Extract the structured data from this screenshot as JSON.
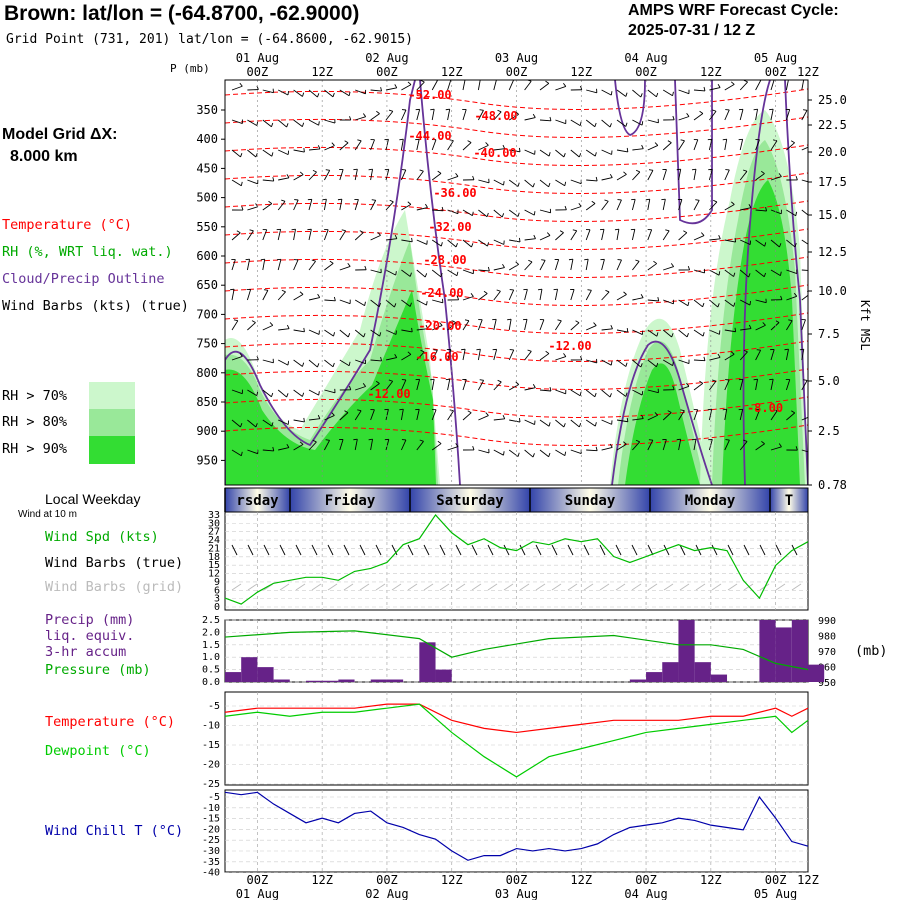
{
  "header": {
    "title": "Brown:  lat/lon = (-64.8700, -62.9000)",
    "subtitle": "Grid Point (731, 201) lat/lon = (-64.8600, -62.9015)",
    "cycle_line1": "AMPS WRF Forecast Cycle:",
    "cycle_line2": "2025-07-31 / 12  Z",
    "grid_label": "Model Grid ΔX:",
    "grid_value": "8.000 km"
  },
  "legend": {
    "temperature": "Temperature (°C)",
    "rh": "RH (%, WRT liq. wat.)",
    "cloud": "Cloud/Precip Outline",
    "wind": "Wind Barbs (kts) (true)",
    "rh70": "RH > 70%",
    "rh80": "RH > 80%",
    "rh90": "RH > 90%",
    "local_weekday": "Local Weekday",
    "wind_at": "Wind at 10 m",
    "wind_spd": "Wind Spd (kts)",
    "wind_true": "Wind Barbs (true)",
    "wind_grid": "Wind Barbs (grid)",
    "precip1": "Precip (mm)",
    "precip2": "liq. equiv.",
    "precip3": "3-hr accum",
    "pressure": "Pressure (mb)",
    "pressure_unit": "(mb)",
    "temp2": "Temperature (°C)",
    "dewpoint": "Dewpoint (°C)",
    "windchill": "Wind Chill T (°C)",
    "p_axis": "P (mb)",
    "kft_axis": "Kft MSL"
  },
  "colors": {
    "temperature": "#ff0000",
    "rh70": "#ccf7cc",
    "rh80": "#99e899",
    "rh90": "#33dd33",
    "cloud": "#663399",
    "wind": "#000000",
    "wind_spd": "#00bb00",
    "precip": "#662288",
    "pressure": "#00aa00",
    "dewpoint": "#00cc00",
    "windchill": "#0000aa",
    "gridline": "#aaaaaa"
  },
  "chart_data": [
    {
      "type": "heatmap",
      "name": "cross-section",
      "time_labels_top": {
        "dates": [
          "01 Aug",
          "02 Aug",
          "03 Aug",
          "04 Aug",
          "05 Aug"
        ],
        "hours": [
          "00Z",
          "12Z",
          "00Z",
          "12Z",
          "00Z",
          "12Z",
          "00Z",
          "12Z",
          "00Z",
          "12Z"
        ]
      },
      "pressure_ticks": [
        "350",
        "400",
        "450",
        "500",
        "550",
        "600",
        "650",
        "700",
        "750",
        "800",
        "850",
        "900",
        "950"
      ],
      "kft_ticks": [
        "25.0",
        "22.5",
        "20.0",
        "17.5",
        "15.0",
        "12.5",
        "10.0",
        "7.5",
        "5.0",
        "2.5",
        "0.78"
      ],
      "temp_labels": [
        "-52.00",
        "-48.00",
        "-44.00",
        "-40.00",
        "-36.00",
        "-32.00",
        "-28.00",
        "-24.00",
        "-20.00",
        "-16.00",
        "-12.00",
        "-12.00",
        "-8.00"
      ]
    },
    {
      "type": "table",
      "name": "weekday-strip",
      "days": [
        "rsday",
        "Friday",
        "Saturday",
        "Sunday",
        "Monday",
        "T"
      ]
    },
    {
      "type": "line",
      "name": "wind-speed",
      "y_ticks": [
        "33",
        "30",
        "27",
        "24",
        "21",
        "18",
        "15",
        "12",
        "9",
        "6",
        "3",
        "0"
      ],
      "ylim": [
        0,
        33
      ],
      "x_hours": [
        0,
        3,
        6,
        9,
        12,
        15,
        18,
        21,
        24,
        27,
        30,
        33,
        36,
        39,
        42,
        45,
        48,
        51,
        54,
        57,
        60,
        63,
        66,
        69,
        72,
        75,
        78,
        81,
        84,
        87,
        90,
        93,
        96,
        99,
        102,
        105,
        108
      ],
      "values": [
        4,
        2,
        6,
        9,
        10,
        11,
        11,
        10,
        13,
        14,
        16,
        22,
        24,
        32,
        26,
        22,
        24,
        21,
        20,
        23,
        22,
        24,
        23,
        24,
        18,
        16,
        18,
        20,
        22,
        20,
        21,
        20,
        10,
        4,
        15,
        20,
        23
      ]
    },
    {
      "type": "bar",
      "name": "precip-pressure",
      "y_ticks_left": [
        "2.5",
        "2.0",
        "1.5",
        "1.0",
        "0.5",
        "0.0"
      ],
      "y_ticks_right": [
        "990",
        "980",
        "970",
        "960",
        "950"
      ],
      "ylim": [
        0,
        2.5
      ],
      "ylim_right": [
        950,
        990
      ],
      "precip_hours": [
        0,
        3,
        6,
        9,
        12,
        15,
        18,
        21,
        24,
        27,
        30,
        33,
        36,
        39,
        42,
        45,
        48,
        51,
        54,
        57,
        60,
        63,
        66,
        69,
        72,
        75,
        78,
        81,
        84,
        87,
        90,
        93,
        96,
        99,
        102,
        105,
        108
      ],
      "precip_values": [
        0.4,
        1.0,
        0.6,
        0.1,
        0,
        0.05,
        0.05,
        0.1,
        0,
        0.1,
        0.1,
        0,
        1.6,
        0.5,
        0,
        0,
        0,
        0,
        0,
        0,
        0,
        0,
        0,
        0,
        0,
        0.1,
        0.4,
        0.8,
        2.5,
        0.8,
        0.3,
        0,
        0,
        2.5,
        2.2,
        2.5,
        0.7
      ],
      "pressure_hours": [
        0,
        12,
        24,
        36,
        42,
        48,
        60,
        72,
        84,
        90,
        96,
        102,
        108
      ],
      "pressure_values": [
        979,
        982,
        983,
        978,
        966,
        971,
        978,
        980,
        974,
        974,
        971,
        962,
        958
      ]
    },
    {
      "type": "line",
      "name": "temp-dewpoint",
      "y_ticks": [
        "-5",
        "-10",
        "-15",
        "-20",
        "-25"
      ],
      "ylim": [
        -25,
        -2
      ],
      "x_hours": [
        0,
        6,
        12,
        18,
        24,
        30,
        36,
        42,
        48,
        54,
        60,
        66,
        72,
        78,
        84,
        90,
        96,
        102,
        105,
        108
      ],
      "temperature": [
        -7,
        -6,
        -6,
        -6,
        -6,
        -5,
        -5,
        -9,
        -11,
        -12,
        -11,
        -10,
        -9,
        -9,
        -9,
        -8,
        -8,
        -6,
        -8,
        -6
      ],
      "dewpoint": [
        -8,
        -7,
        -8,
        -7,
        -7,
        -6,
        -5,
        -12,
        -18,
        -23,
        -18,
        -16,
        -14,
        -12,
        -11,
        -10,
        -9,
        -8,
        -12,
        -9
      ]
    },
    {
      "type": "line",
      "name": "wind-chill",
      "y_ticks": [
        "-5",
        "-10",
        "-15",
        "-20",
        "-25",
        "-30",
        "-35",
        "-40"
      ],
      "ylim": [
        -40,
        -5
      ],
      "x_hours": [
        0,
        3,
        6,
        9,
        12,
        15,
        18,
        21,
        24,
        27,
        30,
        33,
        36,
        39,
        42,
        45,
        48,
        51,
        54,
        57,
        60,
        63,
        66,
        69,
        72,
        75,
        78,
        81,
        84,
        87,
        90,
        93,
        96,
        99,
        102,
        105,
        108
      ],
      "values": [
        -6,
        -7,
        -6,
        -11,
        -15,
        -19,
        -17,
        -19,
        -15,
        -14,
        -19,
        -21,
        -24,
        -26,
        -31,
        -35,
        -33,
        -33,
        -30,
        -31,
        -30,
        -31,
        -30,
        -28,
        -24,
        -21,
        -20,
        -19,
        -17,
        -18,
        -20,
        -21,
        -22,
        -8,
        -17,
        -27,
        -29
      ],
      "time_labels_bottom": {
        "dates": [
          "01 Aug",
          "02 Aug",
          "03 Aug",
          "04 Aug",
          "05 Aug"
        ],
        "hours": [
          "00Z",
          "12Z",
          "00Z",
          "12Z",
          "00Z",
          "12Z",
          "00Z",
          "12Z",
          "00Z",
          "12Z"
        ]
      }
    }
  ]
}
